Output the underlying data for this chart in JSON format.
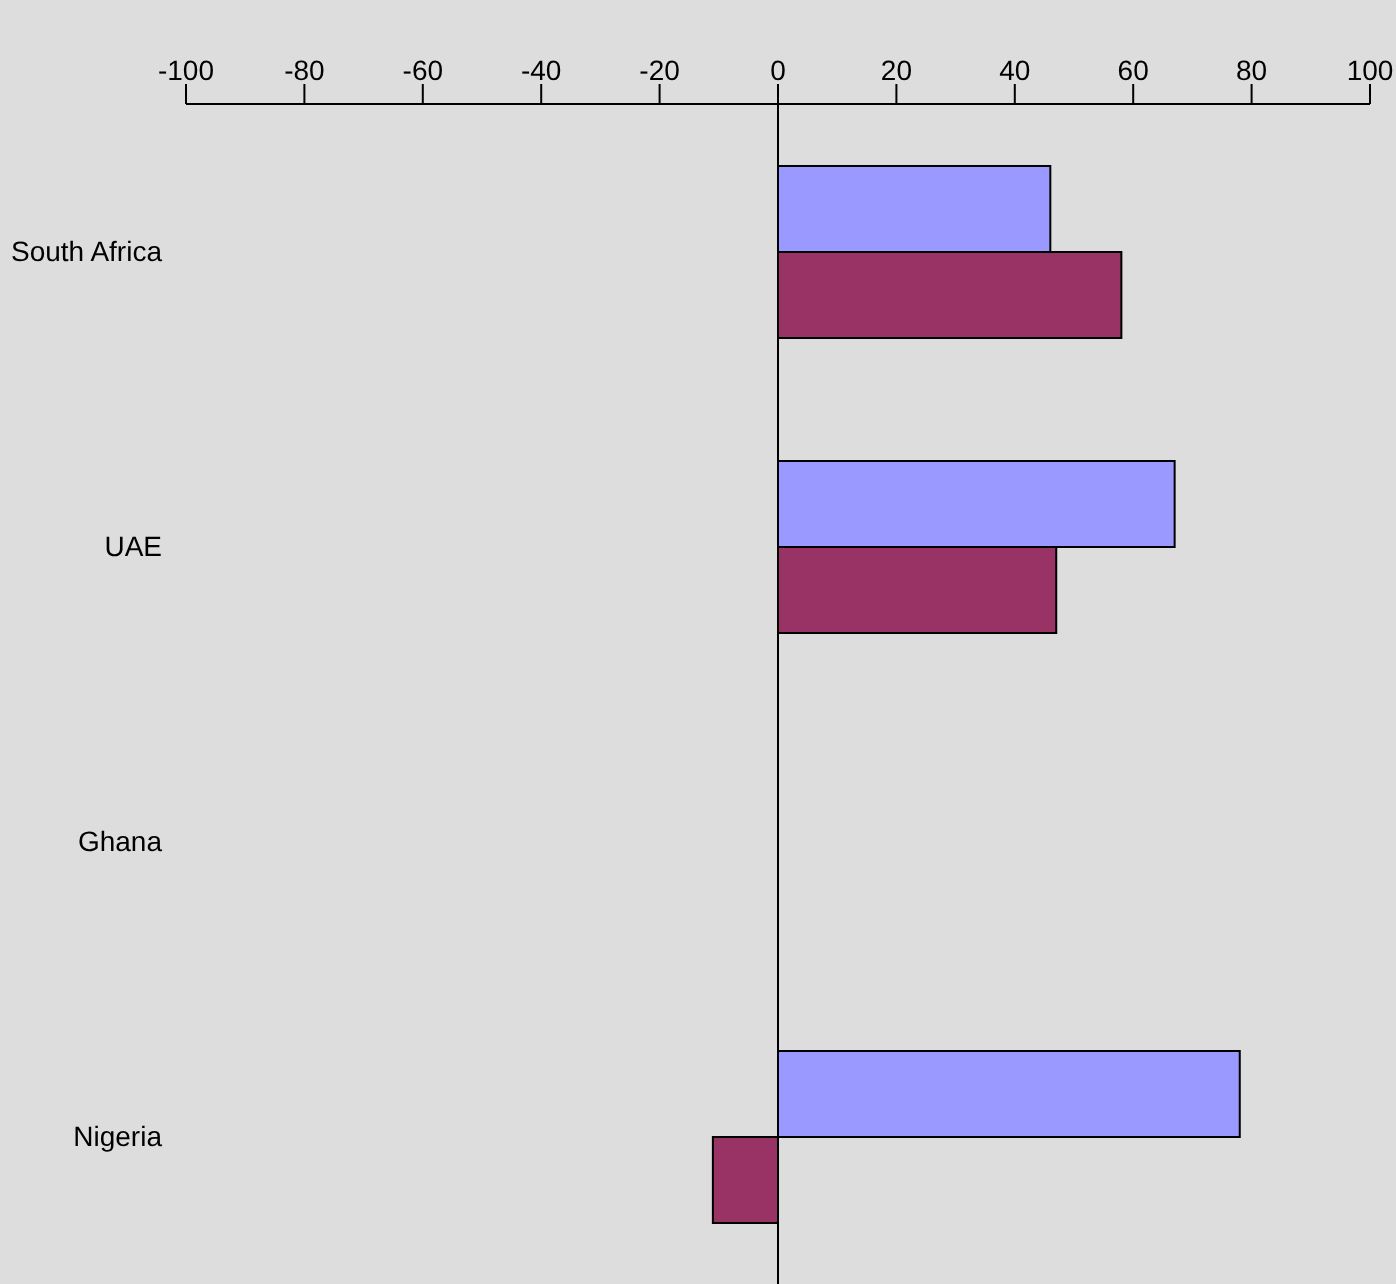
{
  "chart_data": {
    "type": "bar",
    "orientation": "horizontal",
    "categories": [
      "South Africa",
      "UAE",
      "Ghana",
      "Nigeria"
    ],
    "series": [
      {
        "color": "#9999ff",
        "values": [
          46,
          67,
          null,
          78
        ]
      },
      {
        "color": "#993366",
        "values": [
          58,
          47,
          null,
          -11
        ]
      }
    ],
    "xlim": [
      -100,
      100
    ],
    "xticks": [
      -100,
      -80,
      -60,
      -40,
      -20,
      0,
      20,
      40,
      60,
      80,
      100
    ],
    "ref_lines": [
      {
        "axis": "x",
        "value": 0,
        "color": "#000000"
      }
    ],
    "grid": false,
    "legend": false
  }
}
